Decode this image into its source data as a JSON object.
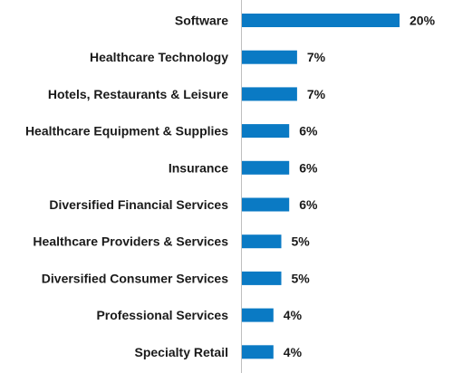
{
  "chart_data": {
    "type": "bar",
    "orientation": "horizontal",
    "categories": [
      "Software",
      "Healthcare Technology",
      "Hotels, Restaurants & Leisure",
      "Healthcare Equipment & Supplies",
      "Insurance",
      "Diversified Financial Services",
      "Healthcare Providers & Services",
      "Diversified Consumer Services",
      "Professional Services",
      "Specialty Retail"
    ],
    "values": [
      20,
      7,
      7,
      6,
      6,
      6,
      5,
      5,
      4,
      4
    ],
    "value_labels": [
      "20%",
      "7%",
      "7%",
      "6%",
      "6%",
      "6%",
      "5%",
      "5%",
      "4%",
      "4%"
    ],
    "xlim": [
      0,
      20
    ],
    "bar_color": "#0a7ac4",
    "grid": false,
    "legend": "none"
  }
}
